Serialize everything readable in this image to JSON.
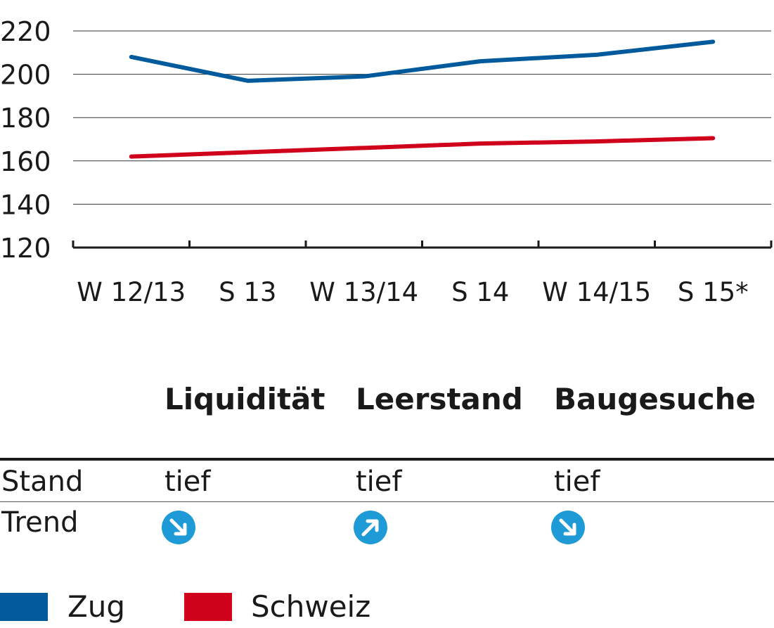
{
  "colors": {
    "zug": "#005a9c",
    "schweiz": "#d0021b",
    "trend_icon": "#1e9ad6",
    "grid": "#333333"
  },
  "chart_data": {
    "type": "line",
    "categories": [
      "W 12/13",
      "S 13",
      "W 13/14",
      "S 14",
      "W 14/15",
      "S 15*"
    ],
    "series": [
      {
        "name": "Zug",
        "values": [
          208,
          197,
          199,
          206,
          209,
          215
        ]
      },
      {
        "name": "Schweiz",
        "values": [
          162,
          164,
          166,
          168,
          169,
          170.5
        ]
      }
    ],
    "y_ticks": [
      120,
      140,
      160,
      180,
      200,
      220
    ],
    "ylim": [
      120,
      220
    ],
    "grid": true,
    "title": "",
    "xlabel": "",
    "ylabel": "",
    "legend": "bottom"
  },
  "table": {
    "columns": [
      "Liquidität",
      "Leerstand",
      "Baugesuche"
    ],
    "rows": [
      {
        "label": "Stand",
        "values": [
          "tief",
          "tief",
          "tief"
        ]
      },
      {
        "label": "Trend",
        "icons": [
          "arrow-down-right-icon",
          "arrow-up-right-icon",
          "arrow-down-right-icon"
        ]
      }
    ]
  },
  "legend": {
    "items": [
      {
        "label": "Zug"
      },
      {
        "label": "Schweiz"
      }
    ]
  }
}
